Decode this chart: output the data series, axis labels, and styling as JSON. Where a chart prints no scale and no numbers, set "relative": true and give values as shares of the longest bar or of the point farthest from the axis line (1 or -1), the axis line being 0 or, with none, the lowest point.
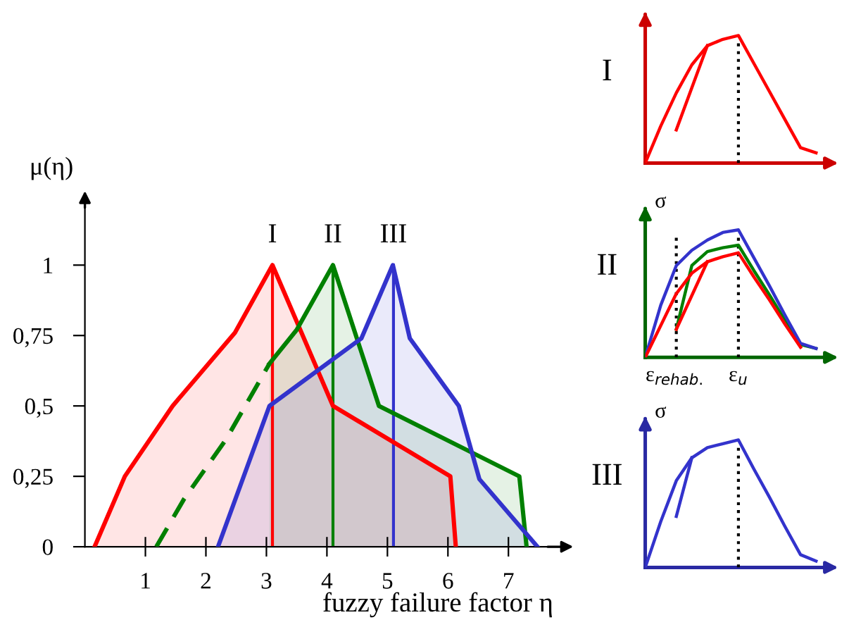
{
  "chart_data": [
    {
      "type": "area",
      "ylabel": "μ(η)",
      "xlabel": "fuzzy failure factor η",
      "xlim": [
        0,
        7.9
      ],
      "ylim": [
        0,
        1.24
      ],
      "xticks": [
        1,
        2,
        3,
        4,
        5,
        6,
        7
      ],
      "yticks": [
        {
          "value": 0,
          "label": "0"
        },
        {
          "value": 0.25,
          "label": "0,25"
        },
        {
          "value": 0.5,
          "label": "0,5"
        },
        {
          "value": 0.75,
          "label": "0,75"
        },
        {
          "value": 1,
          "label": "1"
        }
      ],
      "grid": false,
      "legend": false,
      "marker": "none",
      "line_style": "solid",
      "series": [
        {
          "color": "#ff0000",
          "x": [
            0.16,
            0.66,
            1.45,
            2.48,
            3.1,
            4.1,
            6.04,
            6.13
          ],
          "values": [
            0,
            0.25,
            0.5,
            0.76,
            1,
            0.5,
            0.25,
            0
          ]
        },
        {
          "type": "line",
          "line_style": "dashed",
          "color": "#008000",
          "x": [
            1.18,
            1.64,
            2.33,
            3.05
          ],
          "values": [
            0,
            0.17,
            0.38,
            0.65
          ]
        },
        {
          "color": "#008000",
          "x": [
            3.05,
            3.5,
            4.1,
            4.86,
            7.18,
            7.3
          ],
          "values": [
            0.65,
            0.77,
            1,
            0.5,
            0.25,
            0
          ]
        },
        {
          "color": "#3333cc",
          "x": [
            2.2,
            3.05,
            4.57,
            5.09,
            5.37,
            6.18,
            6.52,
            7.48
          ],
          "values": [
            0,
            0.5,
            0.74,
            1,
            0.74,
            0.5,
            0.24,
            0
          ]
        }
      ],
      "ref_lines": [
        {
          "axis": "x",
          "value": 3.1,
          "label": "I",
          "color": "#ff0000"
        },
        {
          "axis": "x",
          "value": 4.1,
          "label": "II",
          "color": "#008000"
        },
        {
          "axis": "x",
          "value": 5.1,
          "label": "III",
          "color": "#3333cc"
        }
      ]
    },
    {
      "type": "line",
      "relative": true,
      "title": "I",
      "marker": "none",
      "line_style": "solid",
      "categories": [
        null,
        null,
        null,
        null,
        null,
        null,
        null,
        null,
        null,
        null,
        null,
        null,
        null
      ],
      "series": [
        {
          "color": "#ff0000",
          "values": [
            0,
            0.29,
            0.55,
            0.77,
            0.92,
            0.97,
            1,
            0.78,
            0.56,
            0.34,
            0.12,
            0.08,
            null
          ]
        },
        {
          "color": "#ff0000",
          "values": [
            null,
            null,
            0.26,
            null,
            0.92,
            null,
            null,
            null,
            null,
            null,
            null,
            null,
            null
          ]
        }
      ]
    },
    {
      "type": "line",
      "relative": true,
      "title": "II",
      "ylabel": "σ",
      "marker": "none",
      "line_style": "solid",
      "categories": [
        null,
        null,
        null,
        null,
        null,
        null,
        null,
        null,
        null,
        null,
        null,
        null,
        null
      ],
      "annotations": [
        "ε$_{rehab.}$",
        "ε$_{u}$"
      ],
      "series": [
        {
          "color": "#008000",
          "values": [
            null,
            null,
            0.22,
            0.72,
            0.83,
            0.86,
            0.88,
            0.68,
            0.49,
            0.29,
            0.1,
            0.07,
            null
          ]
        },
        {
          "color": "#3333cc",
          "values": [
            0,
            0.41,
            0.72,
            0.84,
            0.92,
            0.98,
            1,
            0.78,
            0.56,
            0.33,
            0.11,
            0.07,
            null
          ]
        },
        {
          "color": "#ff0000",
          "values": [
            0,
            0.25,
            0.5,
            0.66,
            0.75,
            0.79,
            0.82,
            0.63,
            0.45,
            0.26,
            0.08,
            null,
            null
          ]
        },
        {
          "color": "#ff0000",
          "values": [
            null,
            null,
            0.22,
            null,
            0.75,
            null,
            null,
            null,
            null,
            null,
            null,
            null,
            null
          ]
        }
      ]
    },
    {
      "type": "line",
      "relative": true,
      "title": "III",
      "ylabel": "σ",
      "marker": "none",
      "line_style": "solid",
      "categories": [
        null,
        null,
        null,
        null,
        null,
        null,
        null,
        null,
        null,
        null,
        null,
        null,
        null
      ],
      "series": [
        {
          "color": "#3333cc",
          "values": [
            0,
            0.36,
            0.68,
            0.86,
            0.94,
            0.97,
            1,
            0.77,
            0.55,
            0.32,
            0.1,
            0.05,
            null
          ]
        },
        {
          "color": "#3333cc",
          "values": [
            null,
            null,
            0.4,
            0.86,
            null,
            null,
            null,
            null,
            null,
            null,
            null,
            null,
            null
          ]
        }
      ]
    }
  ]
}
